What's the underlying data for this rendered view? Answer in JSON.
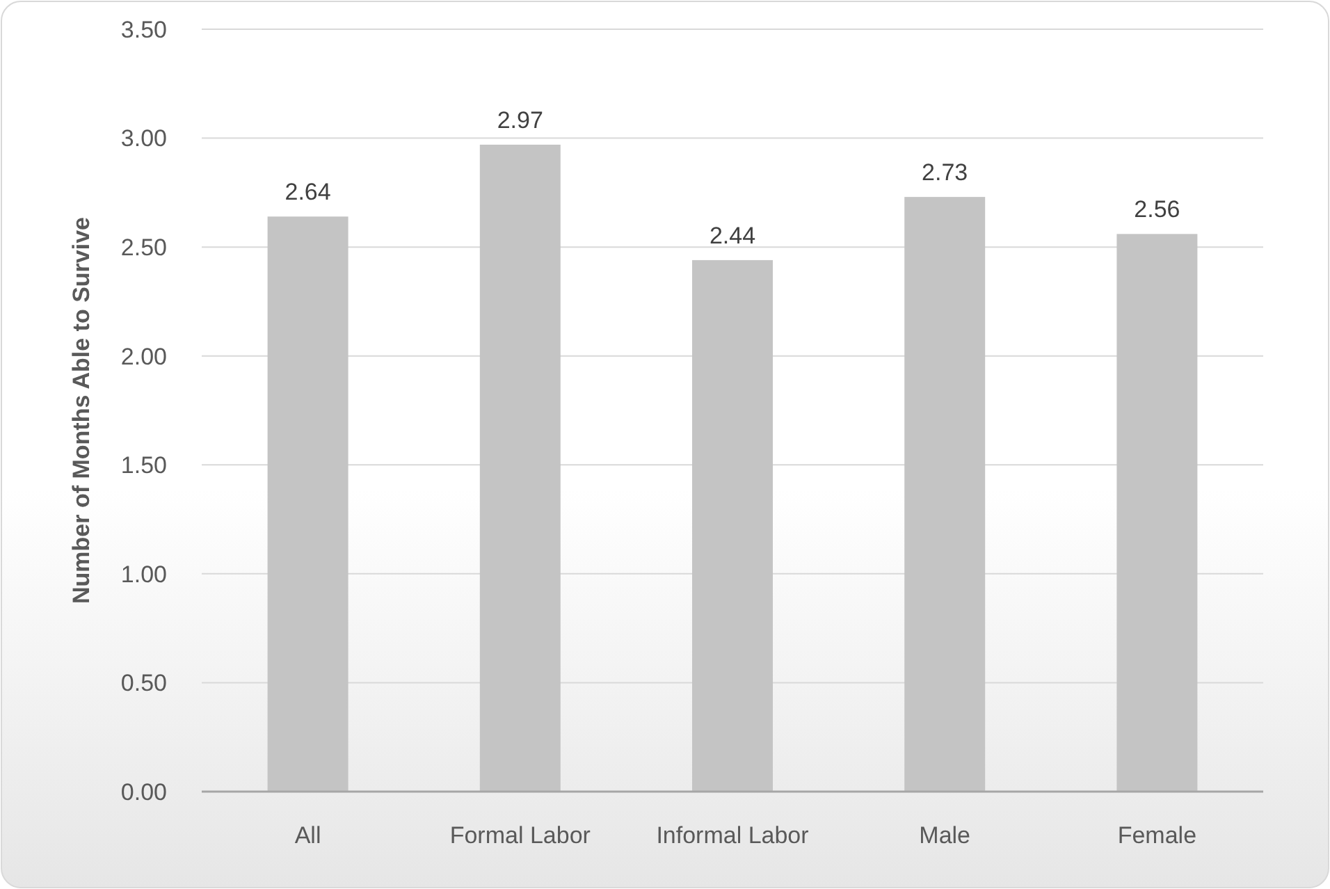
{
  "chart_data": {
    "type": "bar",
    "ylabel": "Number of Months Able to Survive",
    "categories": [
      "All",
      "Formal Labor",
      "Informal Labor",
      "Male",
      "Female"
    ],
    "values": [
      2.64,
      2.97,
      2.44,
      2.73,
      2.56
    ],
    "color": "#c4c4c4",
    "ylim": [
      0,
      3.5
    ],
    "yticks": [
      "0.00",
      "0.50",
      "1.00",
      "1.50",
      "2.00",
      "2.50",
      "3.00",
      "3.50"
    ],
    "grid": "y",
    "data_labels": true
  }
}
